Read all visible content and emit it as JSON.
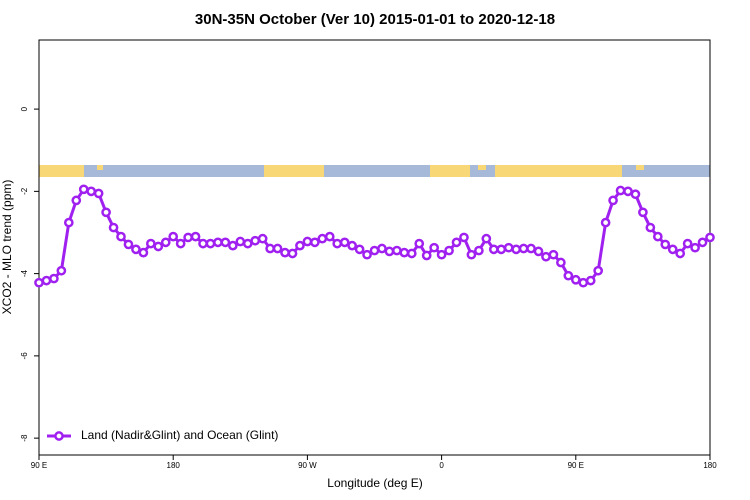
{
  "chart_data": {
    "type": "line",
    "title": "30N-35N October (Ver 10)   2015-01-01 to 2020-12-18",
    "x_label": "Longitude (deg E)",
    "y_label": "XCO2 - MLO trend (ppm)",
    "x": [
      90,
      95,
      100,
      105,
      110,
      115,
      120,
      125,
      130,
      135,
      140,
      145,
      150,
      155,
      160,
      165,
      170,
      175,
      180,
      185,
      190,
      195,
      200,
      205,
      210,
      215,
      220,
      225,
      230,
      235,
      240,
      245,
      250,
      255,
      260,
      265,
      270,
      275,
      280,
      285,
      290,
      295,
      300,
      305,
      310,
      315,
      320,
      325,
      330,
      335,
      340,
      345,
      350,
      355,
      360,
      365,
      370,
      375,
      380,
      385,
      390,
      395,
      400,
      405,
      410,
      415,
      420,
      425,
      430,
      435,
      440,
      445,
      450,
      455,
      460,
      465,
      470,
      475,
      480,
      485,
      490,
      495,
      500,
      505,
      510,
      515,
      520,
      525,
      530,
      535,
      540
    ],
    "series": [
      {
        "name": "Land (Nadir&Glint) and Ocean (Glint)",
        "color": "#a020f0",
        "values": [
          -4.22,
          -4.17,
          -4.12,
          -3.93,
          -2.76,
          -2.22,
          -1.95,
          -2.0,
          -2.05,
          -2.51,
          -2.88,
          -3.1,
          -3.29,
          -3.41,
          -3.49,
          -3.27,
          -3.34,
          -3.24,
          -3.1,
          -3.27,
          -3.12,
          -3.1,
          -3.27,
          -3.27,
          -3.24,
          -3.24,
          -3.32,
          -3.22,
          -3.27,
          -3.2,
          -3.15,
          -3.39,
          -3.39,
          -3.49,
          -3.51,
          -3.32,
          -3.22,
          -3.24,
          -3.15,
          -3.1,
          -3.27,
          -3.24,
          -3.32,
          -3.41,
          -3.54,
          -3.44,
          -3.39,
          -3.46,
          -3.44,
          -3.49,
          -3.51,
          -3.27,
          -3.56,
          -3.37,
          -3.54,
          -3.44,
          -3.24,
          -3.12,
          -3.54,
          -3.44,
          -3.15,
          -3.41,
          -3.41,
          -3.37,
          -3.41,
          -3.39,
          -3.39,
          -3.46,
          -3.59,
          -3.54,
          -3.73,
          -4.05,
          -4.15,
          -4.22,
          -4.17,
          -3.93,
          -2.76,
          -2.22,
          -1.98,
          -2.0,
          -2.07,
          -2.51,
          -2.88,
          -3.1,
          -3.29,
          -3.41,
          -3.51,
          -3.27,
          -3.37,
          -3.24,
          -3.12
        ]
      }
    ],
    "xlim": [
      90,
      540
    ],
    "xticks": [
      {
        "value": 90,
        "label": "90 E"
      },
      180,
      {
        "value": 270,
        "label": "90 W"
      },
      {
        "value": 360,
        "label": "0"
      },
      {
        "value": 450,
        "label": "90 E"
      },
      {
        "value": 540,
        "label": "180"
      }
    ],
    "ylim": [
      -8.41,
      1.68
    ],
    "yticks": [
      0,
      -2,
      -4,
      -6,
      -8
    ],
    "grid": false,
    "legend": "lower left"
  }
}
